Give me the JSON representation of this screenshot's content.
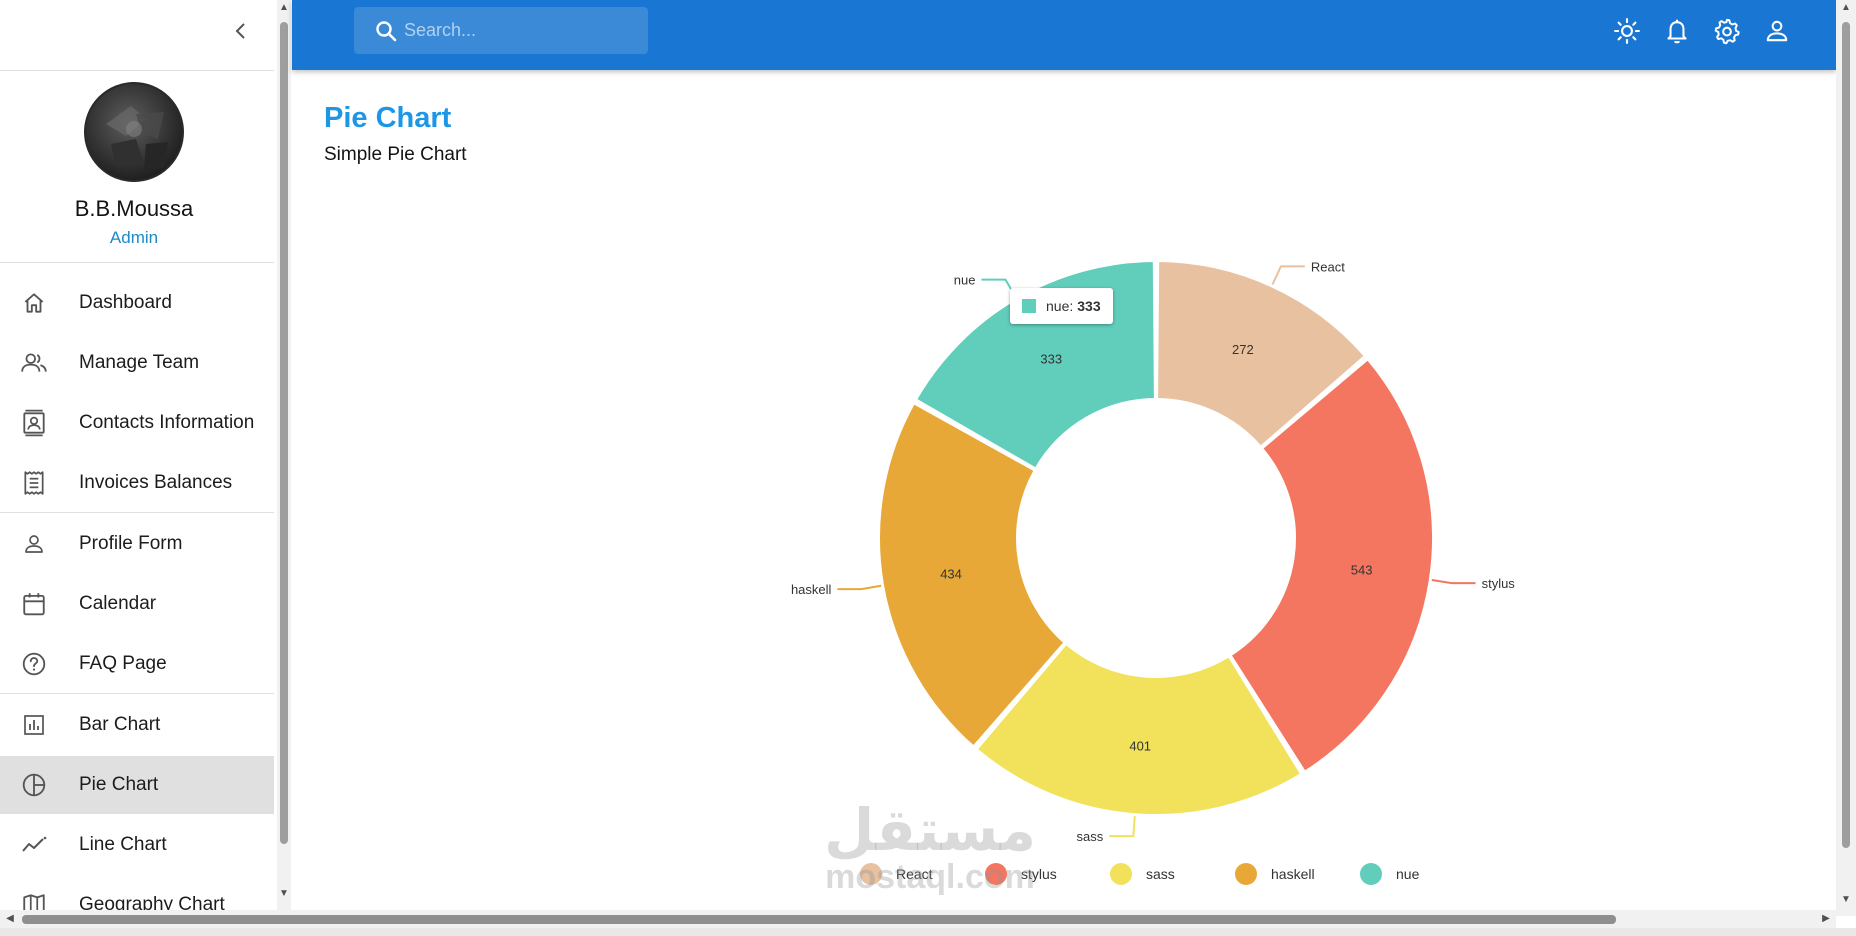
{
  "sidebar": {
    "user_name": "B.B.Moussa",
    "user_role": "Admin",
    "items": [
      {
        "label": "Dashboard",
        "icon": "home-icon"
      },
      {
        "label": "Manage Team",
        "icon": "people-icon"
      },
      {
        "label": "Contacts Information",
        "icon": "contacts-icon"
      },
      {
        "label": "Invoices Balances",
        "icon": "receipt-icon"
      },
      {
        "label": "Profile Form",
        "icon": "person-icon"
      },
      {
        "label": "Calendar",
        "icon": "calendar-icon"
      },
      {
        "label": "FAQ Page",
        "icon": "help-icon"
      },
      {
        "label": "Bar Chart",
        "icon": "bar-chart-icon"
      },
      {
        "label": "Pie Chart",
        "icon": "pie-chart-icon",
        "active": true
      },
      {
        "label": "Line Chart",
        "icon": "line-chart-icon"
      },
      {
        "label": "Geography Chart",
        "icon": "map-icon"
      }
    ]
  },
  "topbar": {
    "search_placeholder": "Search...",
    "icons": [
      "light-mode-icon",
      "notifications-icon",
      "settings-icon",
      "account-icon"
    ]
  },
  "page": {
    "title": "Pie Chart",
    "subtitle": "Simple Pie Chart"
  },
  "chart_data": {
    "type": "pie",
    "variant": "donut",
    "categories": [
      "React",
      "stylus",
      "sass",
      "haskell",
      "nue"
    ],
    "values": [
      272,
      543,
      401,
      434,
      333
    ],
    "colors": [
      "#e8c1a0",
      "#f47560",
      "#f1e15b",
      "#e8a838",
      "#61cdbb"
    ],
    "legend": "bottom",
    "tooltip": {
      "label": "nue",
      "value": "333"
    }
  },
  "watermark": {
    "arabic": "مستقل",
    "latin": "mostaql.com"
  },
  "colors": {
    "topbar": "#1976d2",
    "title": "#1e96e6",
    "role": "#1e88c8",
    "active_item": "#e0e0e0"
  }
}
